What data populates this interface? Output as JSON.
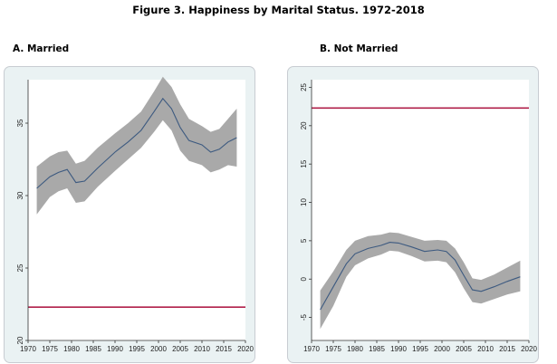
{
  "figure_title": "Figure 3.  Happiness by Marital Status. 1972-2018",
  "chart_data": [
    {
      "type": "line",
      "title": "A.  Married",
      "xlabel": "",
      "ylabel": "",
      "xlim": [
        1970,
        2020
      ],
      "ylim": [
        20,
        38
      ],
      "x_ticks": [
        1970,
        1975,
        1980,
        1985,
        1990,
        1995,
        2000,
        2005,
        2010,
        2015,
        2020
      ],
      "y_ticks": [
        20,
        25,
        30,
        35
      ],
      "y_tick_labels": [
        "20",
        "25",
        "30",
        "35"
      ],
      "y_tick_rotated": true,
      "grid": false,
      "reference_line": {
        "y": 22.3,
        "color": "#b0204a"
      },
      "series_color": "#3d5a80",
      "band_color": "#a9a9a9",
      "series": [
        {
          "x": [
            1972,
            1975,
            1977,
            1979,
            1981,
            1983,
            1986,
            1990,
            1993,
            1996,
            1999,
            2001,
            2003,
            2005,
            2007,
            2010,
            2012,
            2014,
            2016,
            2018
          ],
          "values": [
            30.5,
            31.3,
            31.6,
            31.8,
            30.9,
            31.0,
            31.9,
            33.0,
            33.7,
            34.5,
            35.8,
            36.7,
            36.0,
            34.7,
            33.8,
            33.5,
            33.0,
            33.2,
            33.7,
            34.0
          ],
          "lower": [
            28.7,
            29.9,
            30.3,
            30.5,
            29.5,
            29.6,
            30.6,
            31.7,
            32.5,
            33.3,
            34.4,
            35.2,
            34.5,
            33.1,
            32.4,
            32.1,
            31.6,
            31.8,
            32.1,
            32.0
          ],
          "upper": [
            32.0,
            32.7,
            33.0,
            33.1,
            32.2,
            32.4,
            33.3,
            34.3,
            35.0,
            35.8,
            37.2,
            38.2,
            37.5,
            36.3,
            35.3,
            34.8,
            34.4,
            34.6,
            35.3,
            36.0
          ]
        }
      ]
    },
    {
      "type": "line",
      "title": "B.  Not Married",
      "xlabel": "",
      "ylabel": "",
      "xlim": [
        1970,
        2020
      ],
      "ylim": [
        -8,
        26
      ],
      "x_ticks": [
        1970,
        1975,
        1980,
        1985,
        1990,
        1995,
        2000,
        2005,
        2010,
        2015,
        2020
      ],
      "y_ticks": [
        -5,
        0,
        5,
        10,
        15,
        20,
        25
      ],
      "y_tick_labels": [
        "-5",
        "0",
        "5",
        "10",
        "15",
        "20",
        "25"
      ],
      "y_tick_rotated": true,
      "grid": false,
      "reference_line": {
        "y": 22.3,
        "color": "#b0204a"
      },
      "series_color": "#3d5a80",
      "band_color": "#a9a9a9",
      "series": [
        {
          "x": [
            1972,
            1975,
            1978,
            1980,
            1983,
            1986,
            1988,
            1990,
            1993,
            1996,
            1999,
            2001,
            2003,
            2005,
            2007,
            2009,
            2012,
            2015,
            2018
          ],
          "values": [
            -4.0,
            -1.0,
            2.0,
            3.3,
            4.0,
            4.4,
            4.8,
            4.7,
            4.2,
            3.6,
            3.8,
            3.6,
            2.5,
            0.5,
            -1.4,
            -1.6,
            -1.0,
            -0.3,
            0.3
          ],
          "lower": [
            -6.5,
            -3.5,
            0.3,
            1.8,
            2.7,
            3.2,
            3.7,
            3.6,
            3.0,
            2.3,
            2.4,
            2.2,
            0.9,
            -1.2,
            -3.0,
            -3.2,
            -2.6,
            -2.0,
            -1.6
          ],
          "upper": [
            -1.5,
            1.0,
            3.8,
            5.0,
            5.6,
            5.8,
            6.1,
            6.0,
            5.5,
            5.0,
            5.1,
            5.0,
            4.0,
            2.2,
            0.1,
            -0.1,
            0.6,
            1.5,
            2.4
          ]
        }
      ]
    }
  ]
}
